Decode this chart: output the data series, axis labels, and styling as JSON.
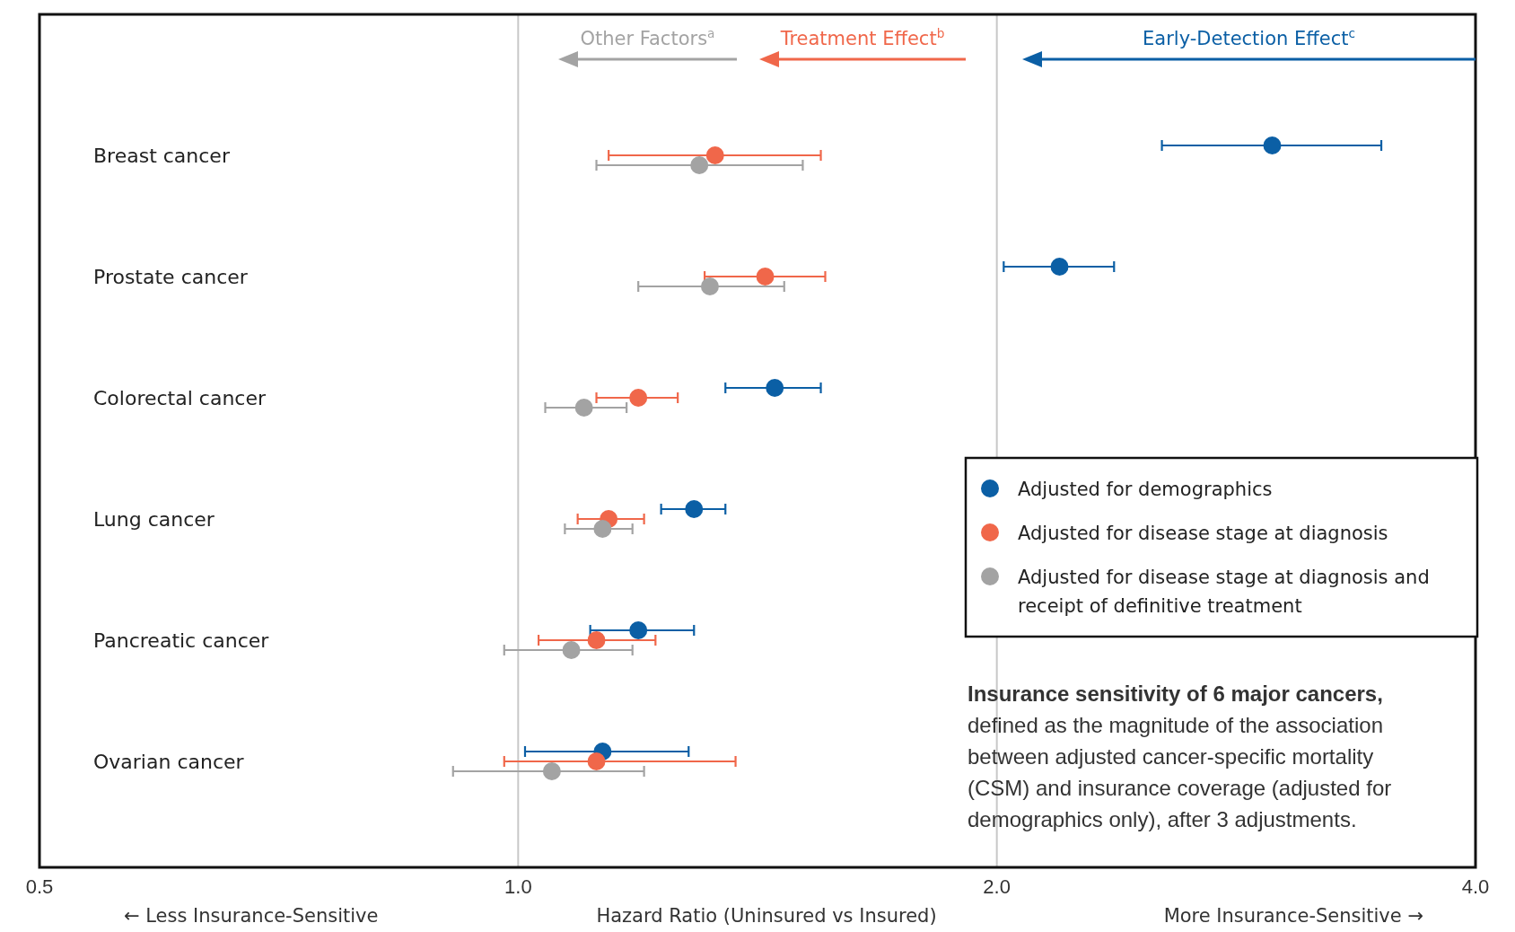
{
  "chart_data": {
    "type": "scatter",
    "orientation": "horizontal",
    "xlabel": "Hazard Ratio (Uninsured vs Insured)",
    "categories": [
      "Breast cancer",
      "Prostate cancer",
      "Colorectal cancer",
      "Lung cancer",
      "Pancreatic cancer",
      "Ovarian cancer"
    ],
    "series": [
      {
        "name": "Adjusted for demographics",
        "color": "#0b5fa5",
        "values": [
          2.98,
          2.19,
          1.45,
          1.29,
          1.19,
          1.13
        ],
        "errors": [
          [
            2.54,
            3.49
          ],
          [
            2.02,
            2.37
          ],
          [
            1.35,
            1.55
          ],
          [
            1.23,
            1.35
          ],
          [
            1.11,
            1.29
          ],
          [
            1.01,
            1.28
          ]
        ]
      },
      {
        "name": "Adjusted for disease stage at diagnosis",
        "color": "#f0674a",
        "values": [
          1.33,
          1.43,
          1.19,
          1.14,
          1.12,
          1.12
        ],
        "errors": [
          [
            1.14,
            1.55
          ],
          [
            1.31,
            1.56
          ],
          [
            1.12,
            1.26
          ],
          [
            1.09,
            1.2
          ],
          [
            1.03,
            1.22
          ],
          [
            0.98,
            1.37
          ]
        ]
      },
      {
        "name": "Adjusted for disease stage at diagnosis and receipt of definitive treatment",
        "color": "#a3a3a3",
        "values": [
          1.3,
          1.32,
          1.1,
          1.13,
          1.08,
          1.05
        ],
        "errors": [
          [
            1.12,
            1.51
          ],
          [
            1.19,
            1.47
          ],
          [
            1.04,
            1.17
          ],
          [
            1.07,
            1.18
          ],
          [
            0.98,
            1.18
          ],
          [
            0.91,
            1.2
          ]
        ]
      }
    ],
    "log": "x",
    "xlim": [
      0.5,
      4
    ],
    "xticks": [
      0.5,
      {
        "value": 1,
        "label": "1.0"
      },
      {
        "value": 2,
        "label": "2.0"
      },
      {
        "value": 4,
        "label": "4.0"
      }
    ],
    "ref_lines": [
      {
        "axis": "x",
        "value": 1,
        "color": "#c8c8c8"
      },
      {
        "axis": "x",
        "value": 2,
        "color": "#c8c8c8"
      }
    ],
    "marker": "circle",
    "legend": "right",
    "grid": false,
    "annotations": [
      "Other Factors$^{a}$",
      "Treatment Effect$^{b}$",
      "Early-Detection Effect$^{c}$",
      "← Less Insurance-Sensitive",
      "More Insurance-Sensitive →",
      "Insurance sensitivity of 6 major cancers,",
      "defined as the magnitude of the association between adjusted cancer-specific mortality (CSM) and insurance coverage (adjusted for demographics only), after 3 adjustments."
    ]
  }
}
